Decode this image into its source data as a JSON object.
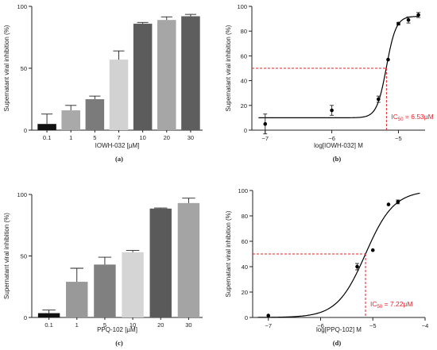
{
  "colors": {
    "axis": "#222222",
    "reference": "#e8202a",
    "curve": "#000000"
  },
  "chart_data": [
    {
      "id": "a",
      "panel_label": "(a)",
      "type": "bar",
      "xlabel": "IOWH-032 [µM]",
      "ylabel": "Supernatant viral inhibition (%)",
      "ylim": [
        0,
        100
      ],
      "yticks": [
        "0",
        "50",
        "100"
      ],
      "categories": [
        "0.1",
        "1",
        "5",
        "7",
        "10",
        "20",
        "30"
      ],
      "values": [
        5,
        16,
        25,
        57,
        86,
        89,
        92
      ],
      "errors": [
        8,
        4,
        2.5,
        7,
        1,
        2.5,
        1.5
      ],
      "colors": [
        "#111111",
        "#a9a9a9",
        "#7b7b7b",
        "#d2d2d2",
        "#5c5c5c",
        "#a6a6a6",
        "#5e5e5e"
      ]
    },
    {
      "id": "b",
      "panel_label": "(b)",
      "type": "scatter",
      "xlabel": "log[IOWH-032] M",
      "ylabel": "Supernatant viral inhibition (%)",
      "xlim": [
        -7.2,
        -4.6
      ],
      "ylim": [
        0,
        100
      ],
      "xticks": [
        {
          "v": -7,
          "label": "−7"
        },
        {
          "v": -6,
          "label": "−6"
        },
        {
          "v": -5,
          "label": "−5"
        }
      ],
      "yticks": [
        "0",
        "20",
        "40",
        "60",
        "80",
        "100"
      ],
      "x": [
        -7,
        -6,
        -5.3,
        -5.155,
        -5,
        -4.85,
        -4.7
      ],
      "y": [
        5,
        16,
        25,
        57,
        86,
        89,
        93
      ],
      "errors": [
        8,
        4,
        2.5,
        0,
        1,
        2.5,
        2
      ],
      "fit": {
        "bottom": 10,
        "top": 92,
        "logEC50": -5.18,
        "hill": 6
      },
      "reference_y": 50,
      "annotation": {
        "prefix": "IC",
        "sub": "50",
        "value": " = 6.53µM"
      }
    },
    {
      "id": "c",
      "panel_label": "(c)",
      "type": "bar",
      "xlabel": "PPQ-102 [µM]",
      "ylabel": "Supernatant viral inhibition (%)",
      "ylim": [
        0,
        100
      ],
      "yticks": [
        "0",
        "50",
        "100"
      ],
      "categories": [
        "0.1",
        "1",
        "5",
        "10",
        "20",
        "30"
      ],
      "values": [
        3.5,
        29,
        43,
        53,
        88.5,
        93
      ],
      "errors": [
        2.5,
        11,
        6,
        1.5,
        0.5,
        4
      ],
      "colors": [
        "#111111",
        "#999999",
        "#808080",
        "#d5d5d5",
        "#5a5a5a",
        "#a4a4a4"
      ]
    },
    {
      "id": "d",
      "panel_label": "(d)",
      "type": "scatter",
      "xlabel": "log[PPQ-102] M",
      "ylabel": "Supernatant viral inhibition (%)",
      "xlim": [
        -7.3,
        -4.0
      ],
      "ylim": [
        0,
        100
      ],
      "xticks": [
        {
          "v": -7,
          "label": "−7"
        },
        {
          "v": -6,
          "label": "−6"
        },
        {
          "v": -5,
          "label": "−5"
        },
        {
          "v": -4,
          "label": "−4"
        }
      ],
      "yticks": [
        "0",
        "20",
        "40",
        "60",
        "80",
        "100"
      ],
      "x": [
        -7,
        -5.3,
        -5.0,
        -4.7,
        -4.52
      ],
      "y": [
        1.5,
        40,
        53,
        89,
        91
      ],
      "errors": [
        0,
        2.5,
        0,
        0,
        1.5
      ],
      "fit": {
        "bottom": 0,
        "top": 100,
        "logEC50": -5.14,
        "hill": 1.6
      },
      "reference_y": 50,
      "annotation": {
        "prefix": "IC",
        "sub": "50",
        "value": " = 7.22µM"
      }
    }
  ]
}
